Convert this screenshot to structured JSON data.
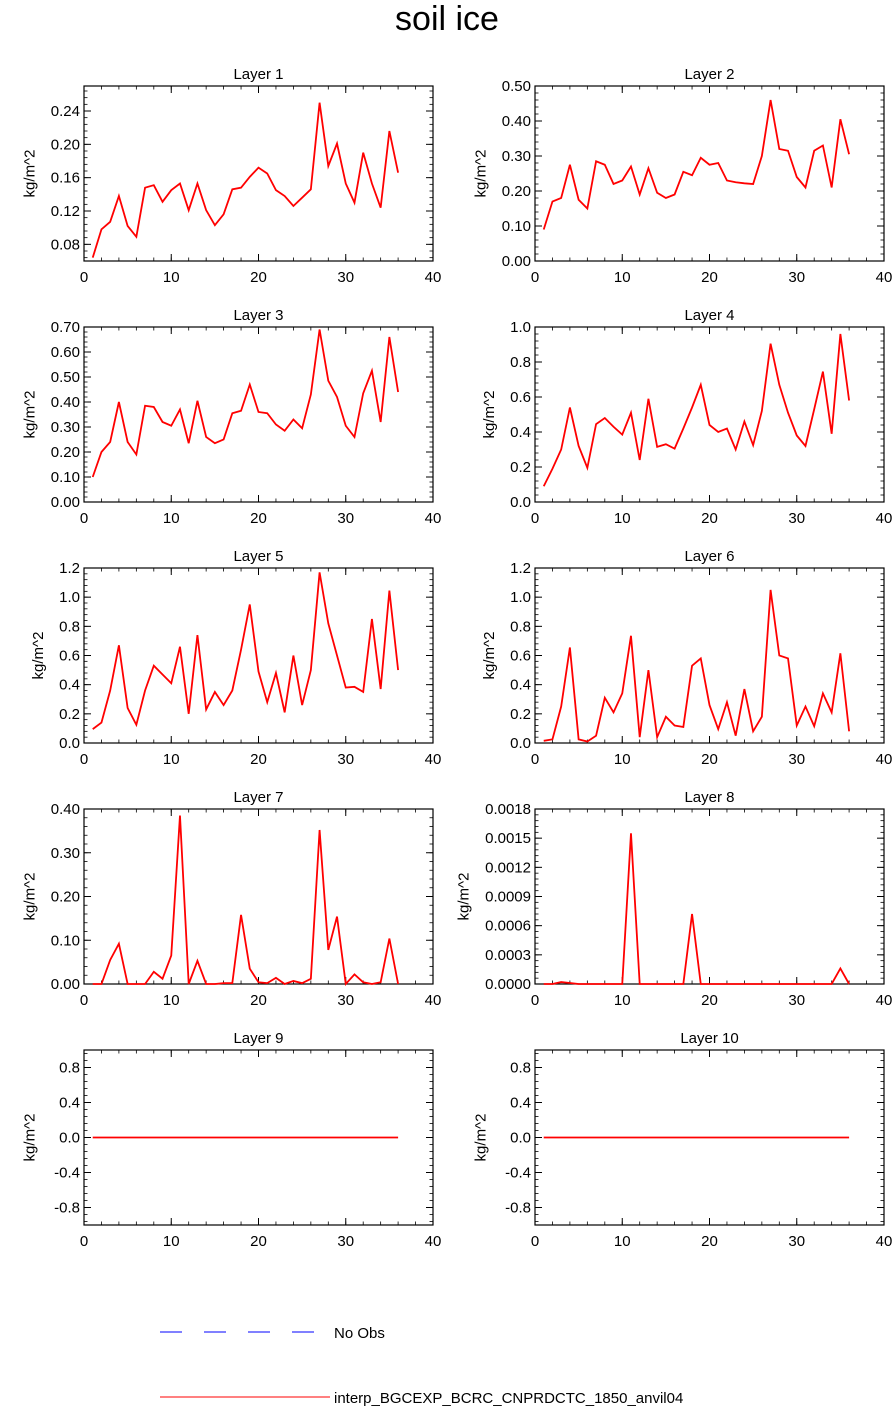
{
  "page_title": "soil ice",
  "colors": {
    "model": "#ff0000",
    "obs": "#0000ff",
    "axis": "#000000"
  },
  "legend": [
    {
      "label": "No Obs",
      "style": "dashed",
      "color": "#0000ff"
    },
    {
      "label": "interp_BGCEXP_BCRC_CNPRDCTC_1850_anvil04",
      "style": "solid",
      "color": "#ff0000"
    }
  ],
  "chart_data": [
    {
      "type": "line",
      "title": "Layer 1",
      "ylabel": "kg/m^2",
      "xlim": [
        0,
        40
      ],
      "xticks": [
        "0",
        "10",
        "20",
        "30",
        "40"
      ],
      "ylim": [
        0.06,
        0.27
      ],
      "yticks": [
        "0.08",
        "0.12",
        "0.16",
        "0.20",
        "0.24"
      ],
      "ytick_values": [
        0.08,
        0.12,
        0.16,
        0.2,
        0.24
      ],
      "series": [
        {
          "values": [
            0.064,
            0.098,
            0.107,
            0.138,
            0.102,
            0.089,
            0.148,
            0.151,
            0.131,
            0.145,
            0.153,
            0.121,
            0.153,
            0.121,
            0.103,
            0.116,
            0.146,
            0.148,
            0.161,
            0.172,
            0.165,
            0.145,
            0.138,
            0.126,
            0.136,
            0.146,
            0.25,
            0.174,
            0.201,
            0.153,
            0.13,
            0.19,
            0.153,
            0.124,
            0.216,
            0.166
          ]
        }
      ]
    },
    {
      "type": "line",
      "title": "Layer 2",
      "ylabel": "kg/m^2",
      "xlim": [
        0,
        40
      ],
      "xticks": [
        "0",
        "10",
        "20",
        "30",
        "40"
      ],
      "ylim": [
        0,
        0.5
      ],
      "yticks": [
        "0.00",
        "0.10",
        "0.20",
        "0.30",
        "0.40",
        "0.50"
      ],
      "ytick_values": [
        0,
        0.1,
        0.2,
        0.3,
        0.4,
        0.5
      ],
      "series": [
        {
          "values": [
            0.09,
            0.17,
            0.18,
            0.275,
            0.175,
            0.15,
            0.285,
            0.275,
            0.22,
            0.23,
            0.27,
            0.19,
            0.265,
            0.195,
            0.18,
            0.19,
            0.255,
            0.245,
            0.295,
            0.275,
            0.28,
            0.23,
            0.225,
            0.222,
            0.22,
            0.3,
            0.46,
            0.32,
            0.315,
            0.24,
            0.21,
            0.315,
            0.33,
            0.21,
            0.405,
            0.305
          ]
        }
      ]
    },
    {
      "type": "line",
      "title": "Layer 3",
      "ylabel": "kg/m^2",
      "xlim": [
        0,
        40
      ],
      "xticks": [
        "0",
        "10",
        "20",
        "30",
        "40"
      ],
      "ylim": [
        0,
        0.7
      ],
      "yticks": [
        "0.00",
        "0.10",
        "0.20",
        "0.30",
        "0.40",
        "0.50",
        "0.60",
        "0.70"
      ],
      "ytick_values": [
        0,
        0.1,
        0.2,
        0.3,
        0.4,
        0.5,
        0.6,
        0.7
      ],
      "series": [
        {
          "values": [
            0.1,
            0.2,
            0.24,
            0.4,
            0.24,
            0.19,
            0.385,
            0.38,
            0.32,
            0.305,
            0.37,
            0.235,
            0.405,
            0.26,
            0.235,
            0.25,
            0.355,
            0.365,
            0.47,
            0.36,
            0.355,
            0.31,
            0.285,
            0.33,
            0.295,
            0.43,
            0.69,
            0.485,
            0.42,
            0.305,
            0.26,
            0.435,
            0.525,
            0.32,
            0.66,
            0.44
          ]
        }
      ]
    },
    {
      "type": "line",
      "title": "Layer 4",
      "ylabel": "kg/m^2",
      "xlim": [
        0,
        40
      ],
      "xticks": [
        "0",
        "10",
        "20",
        "30",
        "40"
      ],
      "ylim": [
        0,
        1.0
      ],
      "yticks": [
        "0.0",
        "0.2",
        "0.4",
        "0.6",
        "0.8",
        "1.0"
      ],
      "ytick_values": [
        0,
        0.2,
        0.4,
        0.6,
        0.8,
        1.0
      ],
      "series": [
        {
          "values": [
            0.09,
            0.19,
            0.3,
            0.54,
            0.32,
            0.195,
            0.445,
            0.48,
            0.43,
            0.385,
            0.51,
            0.24,
            0.59,
            0.315,
            0.33,
            0.305,
            0.42,
            0.54,
            0.67,
            0.44,
            0.4,
            0.42,
            0.3,
            0.46,
            0.325,
            0.52,
            0.905,
            0.67,
            0.51,
            0.38,
            0.32,
            0.53,
            0.745,
            0.39,
            0.96,
            0.58
          ]
        }
      ]
    },
    {
      "type": "line",
      "title": "Layer 5",
      "ylabel": "kg/m^2",
      "xlim": [
        0,
        40
      ],
      "xticks": [
        "0",
        "10",
        "20",
        "30",
        "40"
      ],
      "ylim": [
        0,
        1.2
      ],
      "yticks": [
        "0.0",
        "0.2",
        "0.4",
        "0.6",
        "0.8",
        "1.0",
        "1.2"
      ],
      "ytick_values": [
        0,
        0.2,
        0.4,
        0.6,
        0.8,
        1.0,
        1.2
      ],
      "series": [
        {
          "values": [
            0.095,
            0.14,
            0.36,
            0.67,
            0.24,
            0.125,
            0.36,
            0.53,
            0.47,
            0.41,
            0.66,
            0.2,
            0.74,
            0.23,
            0.35,
            0.26,
            0.36,
            0.64,
            0.95,
            0.49,
            0.28,
            0.48,
            0.21,
            0.6,
            0.26,
            0.5,
            1.17,
            0.82,
            0.6,
            0.38,
            0.385,
            0.35,
            0.85,
            0.37,
            1.045,
            0.5
          ]
        }
      ]
    },
    {
      "type": "line",
      "title": "Layer 6",
      "ylabel": "kg/m^2",
      "xlim": [
        0,
        40
      ],
      "xticks": [
        "0",
        "10",
        "20",
        "30",
        "40"
      ],
      "ylim": [
        0,
        1.2
      ],
      "yticks": [
        "0.0",
        "0.2",
        "0.4",
        "0.6",
        "0.8",
        "1.0",
        "1.2"
      ],
      "ytick_values": [
        0,
        0.2,
        0.4,
        0.6,
        0.8,
        1.0,
        1.2
      ],
      "series": [
        {
          "values": [
            0.015,
            0.025,
            0.25,
            0.655,
            0.025,
            0.01,
            0.05,
            0.31,
            0.21,
            0.34,
            0.735,
            0.04,
            0.5,
            0.04,
            0.18,
            0.12,
            0.11,
            0.53,
            0.58,
            0.26,
            0.095,
            0.28,
            0.05,
            0.37,
            0.08,
            0.18,
            1.05,
            0.6,
            0.58,
            0.12,
            0.25,
            0.115,
            0.34,
            0.21,
            0.615,
            0.08
          ]
        }
      ]
    },
    {
      "type": "line",
      "title": "Layer 7",
      "ylabel": "kg/m^2",
      "xlim": [
        0,
        40
      ],
      "xticks": [
        "0",
        "10",
        "20",
        "30",
        "40"
      ],
      "ylim": [
        0,
        0.4
      ],
      "yticks": [
        "0.00",
        "0.10",
        "0.20",
        "0.30",
        "0.40"
      ],
      "ytick_values": [
        0,
        0.1,
        0.2,
        0.3,
        0.4
      ],
      "series": [
        {
          "values": [
            0,
            0,
            0.055,
            0.092,
            0,
            0,
            0,
            0.028,
            0.012,
            0.065,
            0.385,
            0,
            0.053,
            0,
            0,
            0.002,
            0.002,
            0.158,
            0.035,
            0.004,
            0.002,
            0.014,
            0,
            0.007,
            0.002,
            0.012,
            0.352,
            0.078,
            0.154,
            0,
            0.022,
            0.004,
            0,
            0.004,
            0.104,
            0
          ]
        }
      ]
    },
    {
      "type": "line",
      "title": "Layer 8",
      "ylabel": "kg/m^2",
      "xlim": [
        0,
        40
      ],
      "xticks": [
        "0",
        "10",
        "20",
        "30",
        "40"
      ],
      "ylim": [
        0,
        0.0018
      ],
      "yticks": [
        "0.0000",
        "0.0003",
        "0.0006",
        "0.0009",
        "0.0012",
        "0.0015",
        "0.0018"
      ],
      "ytick_values": [
        0,
        0.0003,
        0.0006,
        0.0009,
        0.0012,
        0.0015,
        0.0018
      ],
      "series": [
        {
          "values": [
            0,
            0,
            2e-05,
            1e-05,
            0,
            0,
            0,
            0,
            0,
            0,
            0.00155,
            0,
            0,
            0,
            0,
            0,
            0,
            0.00072,
            0,
            0,
            0,
            0,
            0,
            0,
            0,
            0,
            0,
            0,
            0,
            0,
            0,
            0,
            0,
            0,
            0.00016,
            0
          ]
        }
      ]
    },
    {
      "type": "line",
      "title": "Layer 9",
      "ylabel": "kg/m^2",
      "xlim": [
        0,
        40
      ],
      "xticks": [
        "0",
        "10",
        "20",
        "30",
        "40"
      ],
      "ylim": [
        -1.0,
        1.0
      ],
      "yticks": [
        "-0.8",
        "-0.4",
        "0.0",
        "0.4",
        "0.8"
      ],
      "ytick_values": [
        -0.8,
        -0.4,
        0,
        0.4,
        0.8
      ],
      "series": [
        {
          "values": [
            0,
            0,
            0,
            0,
            0,
            0,
            0,
            0,
            0,
            0,
            0,
            0,
            0,
            0,
            0,
            0,
            0,
            0,
            0,
            0,
            0,
            0,
            0,
            0,
            0,
            0,
            0,
            0,
            0,
            0,
            0,
            0,
            0,
            0,
            0,
            0
          ]
        }
      ]
    },
    {
      "type": "line",
      "title": "Layer 10",
      "ylabel": "kg/m^2",
      "xlim": [
        0,
        40
      ],
      "xticks": [
        "0",
        "10",
        "20",
        "30",
        "40"
      ],
      "ylim": [
        -1.0,
        1.0
      ],
      "yticks": [
        "-0.8",
        "-0.4",
        "0.0",
        "0.4",
        "0.8"
      ],
      "ytick_values": [
        -0.8,
        -0.4,
        0,
        0.4,
        0.8
      ],
      "series": [
        {
          "values": [
            0,
            0,
            0,
            0,
            0,
            0,
            0,
            0,
            0,
            0,
            0,
            0,
            0,
            0,
            0,
            0,
            0,
            0,
            0,
            0,
            0,
            0,
            0,
            0,
            0,
            0,
            0,
            0,
            0,
            0,
            0,
            0,
            0,
            0,
            0,
            0
          ]
        }
      ]
    }
  ]
}
